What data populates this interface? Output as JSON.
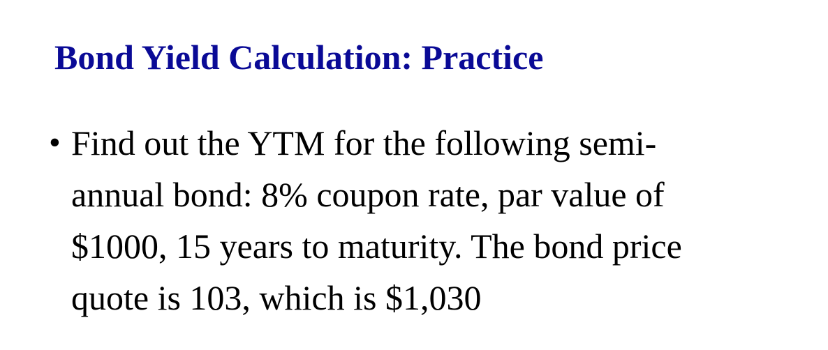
{
  "slide": {
    "title": "Bond Yield Calculation: Practice",
    "title_color": "#0a0a96",
    "bullet_marker": "•",
    "bullet_lines": [
      "Find out the YTM for the following semi-",
      "annual bond: 8% coupon rate, par value of",
      "$1000, 15 years to maturity. The bond price",
      "quote is 103, which is $1,030"
    ]
  }
}
